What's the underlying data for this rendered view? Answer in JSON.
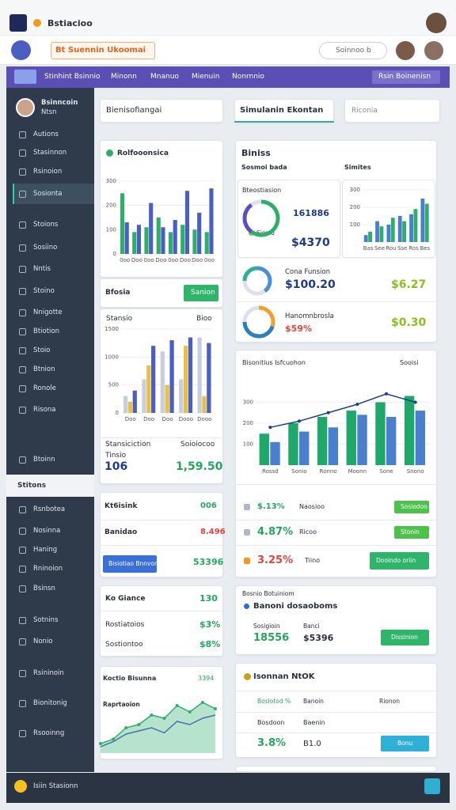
{
  "topbar": {
    "title": "Bstiacioo"
  },
  "header": {
    "title": "Bt Suennin Ukoomai",
    "search": "Soinnoo b"
  },
  "nav": [
    "Stinhint Bsinnio",
    "Minonn",
    "Mnanuo",
    "Mienuin",
    "Nonrnnio"
  ],
  "nav_button": "Rsin Boinenisn",
  "user": {
    "name": "Bsinncoin",
    "role": "Ntsn"
  },
  "sidebar": [
    "Autions",
    "Stasinnon",
    "Rsinoion",
    "Sosionta",
    "Stoions",
    "Sosiino",
    "Nntis",
    "Stoino",
    "Nnigotte",
    "Btiotion",
    "Stoio",
    "Btnion",
    "Ronole",
    "Risona",
    "Btoinn"
  ],
  "sidebar_section": "Stitons",
  "sidebar2": [
    "Rsnbotea",
    "Nosinna",
    "Haning",
    "Rninoion",
    "Bsinsn",
    "Sotnins",
    "Nonio",
    "Rsininoin",
    "Bionitonig",
    "Rsooinng"
  ],
  "bottombar": {
    "label": "Isiin Stasionn"
  },
  "search": {
    "left": "Bienisofiangai",
    "dropdown": "Simulanin Ekontan",
    "right": "Riconia"
  },
  "card1": {
    "title": "Rolfooonsica",
    "footer": "Bfosia",
    "button": "Sanion"
  },
  "card2": {
    "title": "Stansio",
    "right": "Bioo",
    "label1": "Stansiciction",
    "label2": "Soioiocoo",
    "label3": "Tinsio",
    "value1": "106",
    "value2": "1,59.50"
  },
  "card3": {
    "rows": [
      [
        "Kt6isink",
        "006"
      ],
      [
        "Banidao",
        "8.496"
      ]
    ],
    "button": "Bisiotiao Bnnvon",
    "button_value": "53396"
  },
  "card4": {
    "rows": [
      [
        "Ko Giance",
        "130"
      ],
      [
        "Rostiatoios",
        "$3%"
      ],
      [
        "Sostiontoo",
        "$8%"
      ]
    ]
  },
  "card5": {
    "title": "Koctio Bisunna",
    "value": "3394",
    "label": "Raprtaoion"
  },
  "cardA": {
    "title": "Biniss",
    "sub1": "Sosmoi bada",
    "sub2": "Simites",
    "inner_title": "Bteostiasion",
    "inner_value": "161886",
    "inner_label": "Sionio",
    "inner_amount": "$4370",
    "rows": [
      [
        "Cona Funsion",
        "$100.20",
        "$6.27"
      ],
      [
        "Hanomnbrosla",
        "$59%",
        "$0.30"
      ]
    ]
  },
  "cardB": {
    "title": "Bisonitius Isfcuohon",
    "right": "Sooisi",
    "rows": [
      [
        "$.13%",
        "Naosioo",
        "Sosiodoo"
      ],
      [
        "4.87%",
        "Ricoo",
        "Stonin"
      ],
      [
        "3.25%",
        "Tiino",
        "Dooindo oriin"
      ]
    ]
  },
  "cardC": {
    "title": "Bosnio Botuiniom",
    "sub": "Banoni dosaoboms",
    "label1": "Sosigioin",
    "label2": "Banci",
    "value1": "18556",
    "value2": "$5396",
    "button": "Dissinion"
  },
  "cardD": {
    "title": "Isonnan NtOK",
    "h1": "Boslotod %",
    "h2": "Banoin",
    "h3": "Rionon",
    "r1": "Bosdoon",
    "r2": "Baenin",
    "value1": "3.8%",
    "value2": "B1.0",
    "button": "Bonu"
  },
  "chart_data": [
    {
      "type": "bar",
      "ylim": [
        0,
        300
      ],
      "yticks": [
        0,
        100,
        200,
        300
      ],
      "categories": [
        "0oo",
        "Doo",
        "0oo",
        "Doo",
        "0oo",
        "Doo",
        "Doo",
        "0oo"
      ],
      "series": [
        {
          "color": "#2fae6a",
          "values": [
            250,
            90,
            110,
            150,
            90,
            120,
            100,
            90
          ]
        },
        {
          "color": "#4a5fc1",
          "values": [
            130,
            120,
            210,
            110,
            140,
            260,
            170,
            270
          ]
        }
      ]
    },
    {
      "type": "bar",
      "ylim": [
        0,
        1500
      ],
      "yticks": [
        0,
        500,
        1000,
        1500
      ],
      "categories": [
        "Doo",
        "Doo",
        "Doo",
        "Dooo",
        "Dooo"
      ],
      "series": [
        {
          "color": "#c9cde0",
          "values": [
            300,
            600,
            1100,
            600,
            1350
          ]
        },
        {
          "color": "#e8c042",
          "values": [
            200,
            850,
            500,
            1200,
            300
          ]
        },
        {
          "color": "#4a5fc1",
          "values": [
            400,
            1200,
            1300,
            1350,
            1250
          ]
        }
      ]
    },
    {
      "type": "bar",
      "ylim": [
        0,
        400
      ],
      "yticks": [
        100,
        200,
        300
      ],
      "categories": [
        "Rossd",
        "Sonio",
        "Ronno",
        "Moonn",
        "Sone",
        "Snono"
      ],
      "series": [
        {
          "color": "#1fa86a",
          "values": [
            150,
            200,
            230,
            260,
            300,
            330
          ]
        },
        {
          "color": "#4a7fd0",
          "values": [
            110,
            160,
            180,
            240,
            230,
            260
          ]
        },
        {
          "type": "line",
          "color": "#1c3f8a",
          "values": [
            180,
            210,
            250,
            290,
            340,
            300
          ]
        }
      ]
    },
    {
      "type": "bar",
      "ylim": [
        0,
        300
      ],
      "yticks": [
        100,
        200,
        300
      ],
      "categories": [
        "Bas",
        "See",
        "Rou",
        "Sse",
        "Ros",
        "Bes"
      ],
      "series": [
        {
          "color": "#4a7fd0",
          "values": [
            40,
            120,
            100,
            150,
            160,
            250
          ]
        },
        {
          "color": "#2fae6a",
          "values": [
            60,
            90,
            140,
            120,
            190,
            220
          ]
        }
      ]
    },
    {
      "type": "area",
      "ylim": [
        0,
        100
      ],
      "series": [
        {
          "color": "#2fae6a",
          "values": [
            15,
            22,
            40,
            45,
            60,
            55,
            75,
            65,
            80,
            70
          ]
        },
        {
          "type": "line",
          "color": "#4a6fb0",
          "values": [
            10,
            18,
            30,
            35,
            40,
            32,
            50,
            45,
            55,
            60
          ]
        }
      ]
    },
    {
      "type": "pie",
      "values": [
        60,
        30,
        10
      ],
      "colors": [
        "#2fae6a",
        "#5a4fc0",
        "#dde1ea"
      ]
    },
    {
      "type": "pie",
      "values": [
        40,
        35,
        25
      ],
      "colors": [
        "#4a90d9",
        "#dde1ea",
        "#2fae9a"
      ]
    },
    {
      "type": "pie",
      "values": [
        30,
        45,
        25
      ],
      "colors": [
        "#f0a030",
        "#2a7fc0",
        "#dde1ea"
      ]
    }
  ]
}
